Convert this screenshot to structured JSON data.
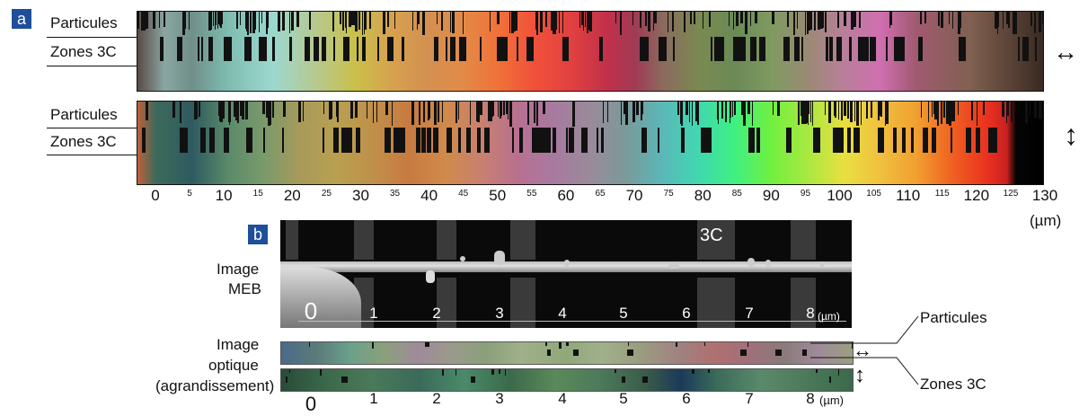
{
  "panel_a": {
    "badge": "a",
    "row1_labels": {
      "particles": "Particules",
      "zones": "Zones 3C"
    },
    "row2_labels": {
      "particles": "Particules",
      "zones": "Zones 3C"
    },
    "row1_arrow": "↔",
    "row2_arrow": "↕",
    "scale_major": [
      "0",
      "10",
      "20",
      "30",
      "40",
      "50",
      "60",
      "70",
      "80",
      "90",
      "100",
      "110",
      "120",
      "130"
    ],
    "scale_minor": [
      "5",
      "15",
      "25",
      "35",
      "45",
      "55",
      "65",
      "75",
      "85",
      "95",
      "105",
      "115",
      "125"
    ],
    "unit": "(µm)"
  },
  "panel_b": {
    "badge": "b",
    "sem_label_line1": "Image",
    "sem_label_line2": "MEB",
    "optical_label_line1": "Image",
    "optical_label_line2": "optique",
    "optical_label_line3": "(agrandissement)",
    "zone_tag": "3C",
    "sem_scale": [
      "0",
      "1",
      "2",
      "3",
      "4",
      "5",
      "6",
      "7",
      "8"
    ],
    "sem_unit": "(µm)",
    "bottom_scale": [
      "0",
      "1",
      "2",
      "3",
      "4",
      "5",
      "6",
      "7",
      "8"
    ],
    "bottom_unit": "(µm)",
    "callout_particles": "Particules",
    "callout_zones": "Zones 3C",
    "arrow_h": "↔",
    "arrow_v": "↕"
  }
}
